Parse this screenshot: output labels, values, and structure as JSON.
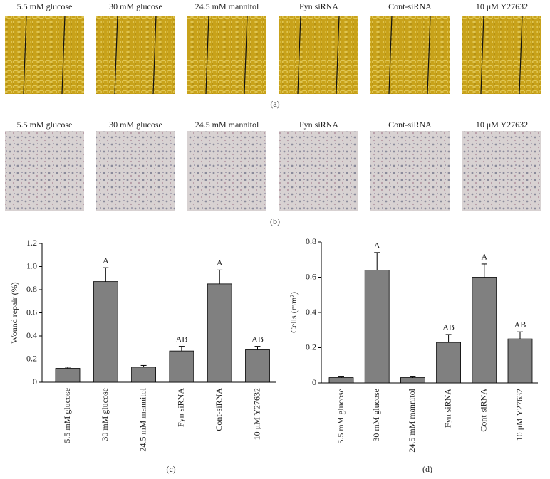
{
  "panels": [
    {
      "label": "(a)",
      "images": [
        "5.5 mM glucose",
        "30 mM glucose",
        "24.5 mM mannitol",
        "Fyn siRNA",
        "Cont-siRNA",
        "10 μM Y27632"
      ]
    },
    {
      "label": "(b)",
      "images": [
        "5.5 mM glucose",
        "30 mM glucose",
        "24.5 mM mannitol",
        "Fyn siRNA",
        "Cont-siRNA",
        "10 μM Y27632"
      ]
    }
  ],
  "chart_data": [
    {
      "type": "bar",
      "panel_label": "(c)",
      "y_label": "Wound repair (%)",
      "color": "#808080",
      "categories": [
        "5.5 mM glucose",
        "30 mM glucose",
        "24.5 mM mannitol",
        "Fyn siRNA",
        "Cont-siRNA",
        "10 μM Y27632"
      ],
      "values": [
        0.12,
        0.87,
        0.13,
        0.27,
        0.85,
        0.28
      ],
      "errors": [
        0.01,
        0.12,
        0.015,
        0.04,
        0.12,
        0.03
      ],
      "annotations": [
        null,
        "A",
        null,
        "AB",
        "A",
        "AB"
      ],
      "ylim": [
        0,
        1.2
      ],
      "yticks": [
        0,
        0.2,
        0.4,
        0.6,
        0.8,
        {
          "value": 1,
          "label": "1.0"
        },
        1.2
      ]
    },
    {
      "type": "bar",
      "panel_label": "(d)",
      "y_label": "Cells (mm²)",
      "color": "#808080",
      "categories": [
        "5.5 mM glucose",
        "30 mM glucose",
        "24.5 mM mannitol",
        "Fyn siRNA",
        "Cont-siRNA",
        "10 μM Y27632"
      ],
      "values": [
        0.03,
        0.64,
        0.03,
        0.23,
        0.6,
        0.25
      ],
      "errors": [
        0.008,
        0.1,
        0.008,
        0.045,
        0.075,
        0.04
      ],
      "annotations": [
        null,
        "A",
        null,
        "AB",
        "A",
        "AB"
      ],
      "ylim": [
        0,
        0.8
      ],
      "yticks": [
        0,
        0.2,
        0.4,
        0.6,
        0.8
      ]
    }
  ]
}
